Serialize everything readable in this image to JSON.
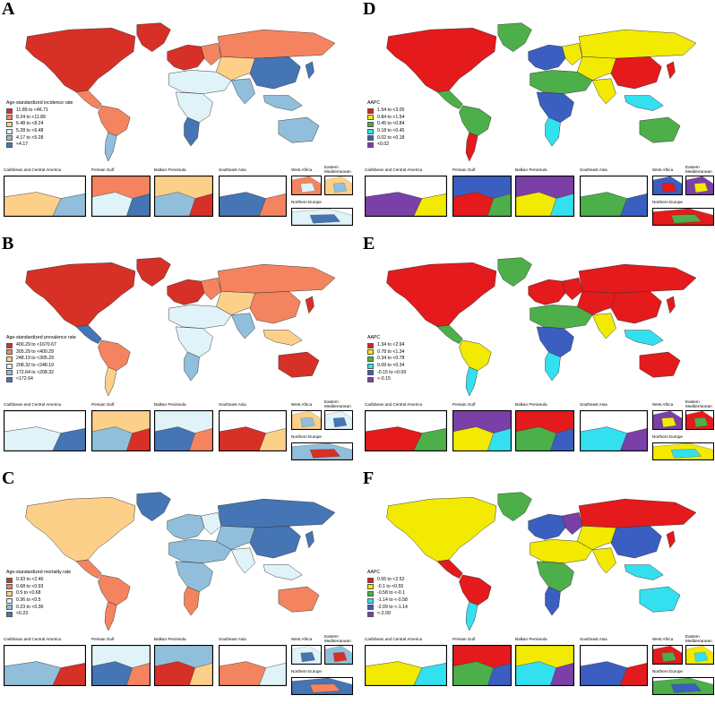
{
  "inset_titles": {
    "caribbean": "Caribbean and Central America",
    "persian_gulf": "Persian Gulf",
    "balkan": "Balkan Peninsula",
    "southeast_asia": "Southeast Asia",
    "west_africa": "West Africa",
    "eastern_med": "Eastern\nMediterranean",
    "northern_europe": "Northern Europe"
  },
  "panels": [
    {
      "letter": "A",
      "legend_title": "Age-standardized incidence rate",
      "legend": [
        {
          "label": "11.89 to <46.71",
          "color": "#d73027"
        },
        {
          "label": "8.24 to <11.89",
          "color": "#f4845f"
        },
        {
          "label": "6.48 to <8.24",
          "color": "#fdd08a"
        },
        {
          "label": "5.28 to <6.48",
          "color": "#e0f3f8"
        },
        {
          "label": "4.17 to <5.28",
          "color": "#91bfdb"
        },
        {
          "label": "<4.17",
          "color": "#4575b4"
        }
      ],
      "regions": {
        "na": 0,
        "ca": 1,
        "sa": 1,
        "sa_south": 4,
        "eu": 0,
        "eu_east": 1,
        "russia": 1,
        "mena": 3,
        "africa": 3,
        "africa_s": 5,
        "central_asia": 2,
        "south_asia": 4,
        "china": 5,
        "japan": 5,
        "sea": 4,
        "aus": 4,
        "greenland": 0
      }
    },
    {
      "letter": "B",
      "legend_title": "Age-standardized prevalence rate",
      "legend": [
        {
          "label": "400.29 to <1670.67",
          "color": "#d73027"
        },
        {
          "label": "305.29 to <400.29",
          "color": "#f4845f"
        },
        {
          "label": "248.19 to <305.29",
          "color": "#fdd08a"
        },
        {
          "label": "208.32 to <248.19",
          "color": "#e0f3f8"
        },
        {
          "label": "172.64 to <208.32",
          "color": "#91bfdb"
        },
        {
          "label": "<172.64",
          "color": "#4575b4"
        }
      ],
      "regions": {
        "na": 0,
        "ca": 5,
        "sa": 1,
        "sa_south": 2,
        "eu": 0,
        "eu_east": 1,
        "russia": 1,
        "mena": 3,
        "africa": 3,
        "africa_s": 4,
        "central_asia": 2,
        "south_asia": 4,
        "china": 1,
        "japan": 0,
        "sea": 2,
        "aus": 0,
        "greenland": 0
      }
    },
    {
      "letter": "C",
      "legend_title": "Age-standardized mortality rate",
      "legend": [
        {
          "label": "0.93 to <2.46",
          "color": "#d73027"
        },
        {
          "label": "0.68 to <0.93",
          "color": "#f4845f"
        },
        {
          "label": "0.5 to <0.68",
          "color": "#fdd08a"
        },
        {
          "label": "0.36 to <0.5",
          "color": "#e0f3f8"
        },
        {
          "label": "0.23 to <0.36",
          "color": "#91bfdb"
        },
        {
          "label": "<0.23",
          "color": "#4575b4"
        }
      ],
      "regions": {
        "na": 2,
        "ca": 1,
        "sa": 1,
        "sa_south": 1,
        "eu": 4,
        "eu_east": 3,
        "russia": 5,
        "mena": 4,
        "africa": 4,
        "africa_s": 1,
        "central_asia": 4,
        "south_asia": 3,
        "china": 5,
        "japan": 5,
        "sea": 3,
        "aus": 1,
        "greenland": 5
      }
    },
    {
      "letter": "D",
      "legend_title": "AAPC",
      "legend": [
        {
          "label": "1.54 to <3.05",
          "color": "#e41a1c"
        },
        {
          "label": "0.84 to <1.54",
          "color": "#f2ea00"
        },
        {
          "label": "0.45 to <0.84",
          "color": "#4daf4a"
        },
        {
          "label": "0.18 to <0.45",
          "color": "#33e0f0"
        },
        {
          "label": "0.02 to <0.18",
          "color": "#3b5fc0"
        },
        {
          "label": "<0.02",
          "color": "#7b3fa8"
        }
      ],
      "regions": {
        "na": 0,
        "ca": 2,
        "sa": 2,
        "sa_south": 0,
        "eu": 4,
        "eu_east": 1,
        "russia": 1,
        "mena": 2,
        "africa": 4,
        "africa_s": 3,
        "central_asia": 1,
        "south_asia": 1,
        "china": 0,
        "japan": 0,
        "sea": 3,
        "aus": 2,
        "greenland": 2
      }
    },
    {
      "letter": "E",
      "legend_title": "AAPC",
      "legend": [
        {
          "label": "1.34 to <2.94",
          "color": "#e41a1c"
        },
        {
          "label": "0.78 to <1.34",
          "color": "#f2ea00"
        },
        {
          "label": "0.34 to <0.78",
          "color": "#4daf4a"
        },
        {
          "label": "0.09 to <0.34",
          "color": "#33e0f0"
        },
        {
          "label": "-0.15 to <0.09",
          "color": "#3b5fc0"
        },
        {
          "label": "<-0.15",
          "color": "#7b3fa8"
        }
      ],
      "regions": {
        "na": 0,
        "ca": 2,
        "sa": 1,
        "sa_south": 3,
        "eu": 0,
        "eu_east": 0,
        "russia": 0,
        "mena": 2,
        "africa": 4,
        "africa_s": 3,
        "central_asia": 0,
        "south_asia": 1,
        "china": 0,
        "japan": 0,
        "sea": 3,
        "aus": 0,
        "greenland": 2
      }
    },
    {
      "letter": "F",
      "legend_title": "AAPC",
      "legend": [
        {
          "label": "0.55 to <2.52",
          "color": "#e41a1c"
        },
        {
          "label": "-0.1 to <0.55",
          "color": "#f2ea00"
        },
        {
          "label": "-0.58 to <-0.1",
          "color": "#4daf4a"
        },
        {
          "label": "-1.14 to <-0.58",
          "color": "#33e0f0"
        },
        {
          "label": "-2.09 to <-1.14",
          "color": "#3b5fc0"
        },
        {
          "label": "<-2.09",
          "color": "#7b3fa8"
        }
      ],
      "regions": {
        "na": 1,
        "ca": 0,
        "sa": 0,
        "sa_south": 3,
        "eu": 4,
        "eu_east": 5,
        "russia": 0,
        "mena": 1,
        "africa": 2,
        "africa_s": 4,
        "central_asia": 1,
        "south_asia": 1,
        "china": 4,
        "japan": 0,
        "sea": 3,
        "aus": 3,
        "greenland": 2
      }
    }
  ]
}
